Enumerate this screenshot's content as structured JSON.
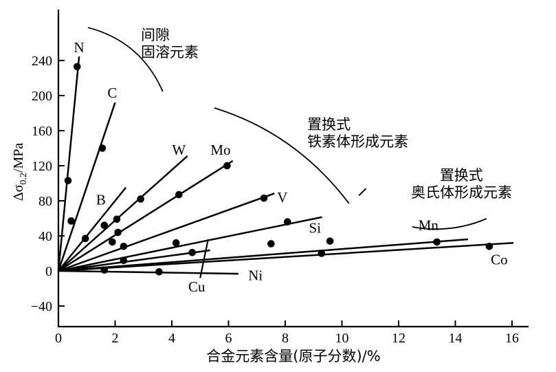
{
  "figure": {
    "background": "#ffffff",
    "ink_color": "#000000"
  },
  "chart_data": {
    "type": "line-scatter",
    "title": "",
    "xlabel": "合金元素含量(原子分数)/%",
    "ylabel_prefix": "Δσ",
    "ylabel_sub": "0.2",
    "ylabel_suffix": "/MPa",
    "xlim": [
      0,
      16.55
    ],
    "ylim": [
      -63.5,
      297
    ],
    "grid": false,
    "legend": "none",
    "xticks": [
      {
        "v": 0,
        "label": "0"
      },
      {
        "v": 2,
        "label": "2"
      },
      {
        "v": 4,
        "label": "4"
      },
      {
        "v": 6,
        "label": "6"
      },
      {
        "v": 8,
        "label": "8"
      },
      {
        "v": 10,
        "label": "10"
      },
      {
        "v": 12,
        "label": "12"
      },
      {
        "v": 14,
        "label": "14"
      },
      {
        "v": 16,
        "label": "16"
      }
    ],
    "yticks": [
      {
        "v": -40,
        "label": "−40"
      },
      {
        "v": 0,
        "label": "0"
      },
      {
        "v": 40,
        "label": "40"
      },
      {
        "v": 80,
        "label": "80"
      },
      {
        "v": 120,
        "label": "120"
      },
      {
        "v": 160,
        "label": "160"
      },
      {
        "v": 200,
        "label": "200"
      },
      {
        "v": 240,
        "label": "240"
      }
    ],
    "series": [
      {
        "name": "N",
        "line": [
          [
            0,
            0
          ],
          [
            0.73,
            244.6
          ]
        ],
        "points": [
          [
            0.34,
            103
          ],
          [
            0.66,
            233
          ]
        ],
        "label": {
          "x": 0.73,
          "y": 255
        }
      },
      {
        "name": "C",
        "line": [
          [
            0,
            0
          ],
          [
            2.0,
            192.0
          ]
        ],
        "points": [
          [
            0.45,
            57
          ],
          [
            1.55,
            140
          ]
        ],
        "label": {
          "x": 1.9,
          "y": 203
        }
      },
      {
        "name": "B",
        "line": [
          [
            0,
            0
          ],
          [
            2.38,
            95.2
          ]
        ],
        "points": [
          [
            0.95,
            37
          ],
          [
            1.62,
            52
          ]
        ],
        "label": {
          "x": 1.5,
          "y": 81
        }
      },
      {
        "name": "W",
        "line": [
          [
            0,
            0
          ],
          [
            4.55,
            131.0
          ]
        ],
        "points": [
          [
            2.06,
            59
          ],
          [
            2.9,
            82
          ]
        ],
        "label": {
          "x": 4.25,
          "y": 138
        }
      },
      {
        "name": "Mo",
        "line": [
          [
            0,
            0
          ],
          [
            6.15,
            125.5
          ]
        ],
        "points": [
          [
            2.1,
            44
          ],
          [
            4.25,
            87
          ],
          [
            5.95,
            120
          ]
        ],
        "label": {
          "x": 5.72,
          "y": 138
        }
      },
      {
        "name": "V",
        "line": [
          [
            0,
            0
          ],
          [
            7.62,
            88.4
          ]
        ],
        "points": [
          [
            1.9,
            33
          ],
          [
            2.3,
            28
          ],
          [
            7.25,
            83
          ]
        ],
        "label": {
          "x": 7.9,
          "y": 84
        }
      },
      {
        "name": "Si",
        "line": [
          [
            0,
            0
          ],
          [
            9.3,
            61.4
          ]
        ],
        "points": [
          [
            4.15,
            32
          ],
          [
            8.08,
            56
          ],
          [
            9.58,
            34
          ]
        ],
        "label": {
          "x": 9.05,
          "y": 49
        }
      },
      {
        "name": "Mn",
        "line": [
          [
            0,
            0
          ],
          [
            14.45,
            36.1
          ]
        ],
        "points": [
          [
            7.5,
            31
          ],
          [
            13.35,
            33
          ]
        ],
        "label": {
          "x": 13.05,
          "y": 52
        }
      },
      {
        "name": "Co",
        "line": [
          [
            0,
            0
          ],
          [
            16.05,
            32.0
          ]
        ],
        "points": [
          [
            9.28,
            20
          ],
          [
            15.2,
            28
          ]
        ],
        "label": {
          "x": 15.55,
          "y": 13
        }
      },
      {
        "name": "Cu",
        "line": [
          [
            0,
            0
          ],
          [
            5.35,
            23.5
          ]
        ],
        "points": [
          [
            2.3,
            12
          ],
          [
            4.72,
            21
          ]
        ],
        "label": {
          "x": 4.88,
          "y": -18
        }
      },
      {
        "name": "Ni",
        "line": [
          [
            0,
            0
          ],
          [
            6.35,
            -3.2
          ]
        ],
        "points": [
          [
            1.62,
            1
          ],
          [
            3.55,
            -1
          ]
        ],
        "label": {
          "x": 6.95,
          "y": -5
        }
      }
    ],
    "leader_lines": [
      {
        "from": [
          5.0,
          -8
        ],
        "to": [
          5.28,
          36
        ]
      }
    ],
    "braces": [
      {
        "from": [
          1.04,
          277.6
        ],
        "ctrl": [
          2.9,
          262.0
        ],
        "to": [
          3.68,
          204.7
        ]
      },
      {
        "from": [
          5.5,
          185.9
        ],
        "ctrl": [
          8.37,
          157.2
        ],
        "to": [
          10.25,
          76.9
        ]
      },
      {
        "from": [
          12.48,
          50.2
        ],
        "ctrl": [
          13.85,
          42.3
        ],
        "to": [
          15.1,
          59.6
        ]
      }
    ],
    "marks": [
      {
        "from": [
          10.6,
          86
        ],
        "to": [
          10.85,
          94
        ]
      }
    ],
    "annotations": [
      {
        "text": "间隙",
        "x": 2.91,
        "y": 269.8
      },
      {
        "text": "固溶元素",
        "x": 2.91,
        "y": 250.2
      },
      {
        "text": "置换式",
        "x": 8.78,
        "y": 167.8
      },
      {
        "text": "铁素体形成元素",
        "x": 8.78,
        "y": 148.2
      },
      {
        "text": "置换式",
        "x": 13.45,
        "y": 109.8
      },
      {
        "text": "奥氏体形成元素",
        "x": 12.44,
        "y": 90.2
      }
    ]
  }
}
